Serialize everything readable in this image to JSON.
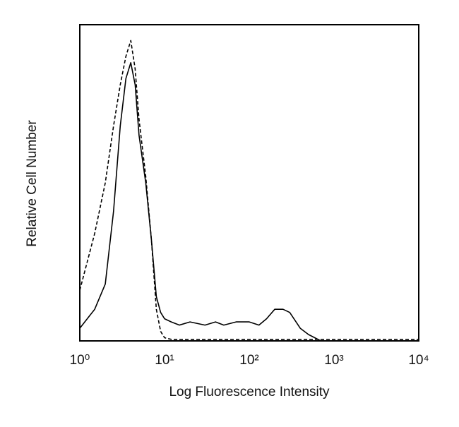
{
  "chart_data": {
    "type": "line",
    "x_label": "Log Fluorescence Intensity",
    "y_label": "Relative Cell Number",
    "x_scale": "log",
    "xlim": [
      1,
      10000
    ],
    "xticks": [
      {
        "value": 1,
        "label": "10⁰"
      },
      {
        "value": 10,
        "label": "10¹"
      },
      {
        "value": 100,
        "label": "10²"
      },
      {
        "value": 1000,
        "label": "10³"
      },
      {
        "value": 10000,
        "label": "10⁴"
      }
    ],
    "ylim": [
      0,
      100
    ],
    "x": [
      1,
      1.5,
      2,
      2.5,
      3,
      3.5,
      4,
      4.5,
      5,
      6,
      7,
      8,
      9,
      10,
      12,
      15,
      20,
      30,
      40,
      50,
      70,
      100,
      130,
      160,
      200,
      250,
      300,
      400,
      500,
      700,
      1000,
      10000
    ],
    "series": [
      {
        "color": "#000000",
        "dash": false,
        "values": [
          4,
          10,
          18,
          41,
          68,
          83,
          88,
          81,
          65,
          50,
          32,
          14,
          9,
          7,
          6,
          5,
          6,
          5,
          6,
          5,
          6,
          6,
          5,
          7,
          10,
          10,
          9,
          4,
          2,
          0,
          0,
          0
        ]
      },
      {
        "color": "#000000",
        "dash": true,
        "values": [
          16,
          34,
          50,
          68,
          81,
          90,
          95,
          86,
          70,
          52,
          32,
          10,
          3,
          1,
          0.5,
          0.5,
          0.5,
          0.5,
          0.5,
          0.5,
          0.5,
          0.5,
          0.5,
          0.5,
          0.5,
          0.5,
          0.5,
          0.5,
          0.5,
          0.5,
          0.5,
          0.5
        ]
      }
    ]
  }
}
